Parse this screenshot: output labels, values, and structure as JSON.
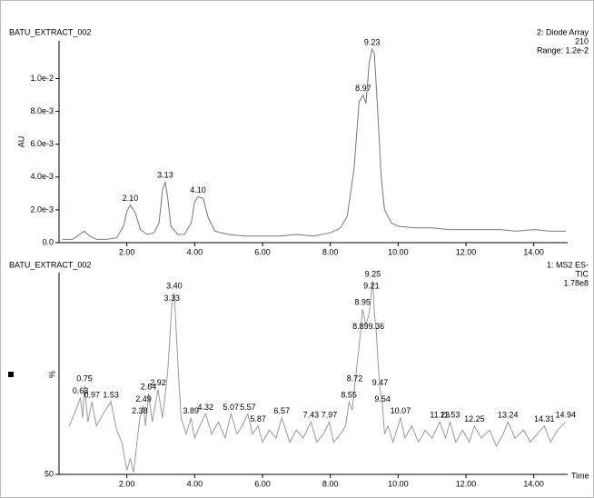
{
  "chart_data": [
    {
      "type": "line",
      "title": "BATU_EXTRACT_002",
      "info": [
        "2: Diode Array",
        "210",
        "Range: 1.2e-2"
      ],
      "ylabel": "AU",
      "xlim": [
        0,
        15
      ],
      "ylim": [
        0,
        0.0123
      ],
      "xticks": [
        {
          "value": 2,
          "label": "2.00"
        },
        {
          "value": 4,
          "label": "4.00"
        },
        {
          "value": 6,
          "label": "6.00"
        },
        {
          "value": 8,
          "label": "8.00"
        },
        {
          "value": 10,
          "label": "10.00"
        },
        {
          "value": 12,
          "label": "12.00"
        },
        {
          "value": 14,
          "label": "14.00"
        }
      ],
      "yticks": [
        {
          "value": 0,
          "label": "0.0"
        },
        {
          "value": 0.002,
          "label": "2.0e-3"
        },
        {
          "value": 0.004,
          "label": "4.0e-3"
        },
        {
          "value": 0.006,
          "label": "6.0e-3"
        },
        {
          "value": 0.008,
          "label": "8.0e-3"
        },
        {
          "value": 0.01,
          "label": "1.0e-2"
        }
      ],
      "series": [
        {
          "color": "#777777",
          "x": [
            0.1,
            0.4,
            0.6,
            0.75,
            0.9,
            1.1,
            1.4,
            1.7,
            1.9,
            2.0,
            2.1,
            2.25,
            2.4,
            2.6,
            2.8,
            2.95,
            3.05,
            3.13,
            3.2,
            3.3,
            3.5,
            3.7,
            3.9,
            4.0,
            4.1,
            4.25,
            4.4,
            4.6,
            5.0,
            5.5,
            6.0,
            6.5,
            7.0,
            7.5,
            8.0,
            8.3,
            8.5,
            8.7,
            8.85,
            8.97,
            9.05,
            9.15,
            9.23,
            9.3,
            9.4,
            9.5,
            9.6,
            9.8,
            10.0,
            10.5,
            11.0,
            11.5,
            12.0,
            12.5,
            13.0,
            13.5,
            14.0,
            14.5,
            14.95
          ],
          "values": [
            0.0002,
            0.0002,
            0.0005,
            0.0007,
            0.0004,
            0.0002,
            0.0002,
            0.0003,
            0.001,
            0.0019,
            0.0023,
            0.0018,
            0.0008,
            0.0005,
            0.0006,
            0.0012,
            0.0032,
            0.0037,
            0.0028,
            0.001,
            0.0005,
            0.0005,
            0.0012,
            0.0025,
            0.0028,
            0.0027,
            0.0015,
            0.0007,
            0.0005,
            0.0004,
            0.0004,
            0.0004,
            0.0005,
            0.0004,
            0.0006,
            0.0009,
            0.0016,
            0.0045,
            0.0086,
            0.009,
            0.0085,
            0.011,
            0.0118,
            0.0115,
            0.008,
            0.004,
            0.002,
            0.0012,
            0.001,
            0.0009,
            0.0009,
            0.0008,
            0.0008,
            0.0008,
            0.0008,
            0.0007,
            0.0008,
            0.0007,
            0.0007
          ]
        }
      ],
      "peaks": [
        {
          "label": "2.10",
          "x": 2.1,
          "y": 0.0023
        },
        {
          "label": "3.13",
          "x": 3.13,
          "y": 0.0037
        },
        {
          "label": "4.10",
          "x": 4.1,
          "y": 0.0028
        },
        {
          "label": "8.97",
          "x": 8.97,
          "y": 0.009
        },
        {
          "label": "9.23",
          "x": 9.23,
          "y": 0.0118
        }
      ]
    },
    {
      "type": "line",
      "title": "BATU_EXTRACT_002",
      "info": [
        "1: MS2 ES-",
        "TIC",
        "1.78e8"
      ],
      "ylabel": "%",
      "xlabel": "Time",
      "xlim": [
        0,
        15
      ],
      "ylim": [
        50,
        100
      ],
      "xticks": [
        {
          "value": 2,
          "label": "2.00"
        },
        {
          "value": 4,
          "label": "4.00"
        },
        {
          "value": 6,
          "label": "6.00"
        },
        {
          "value": 8,
          "label": "8.00"
        },
        {
          "value": 10,
          "label": "10.00"
        },
        {
          "value": 12,
          "label": "12.00"
        },
        {
          "value": 14,
          "label": "14.00"
        }
      ],
      "yticks": [
        50
      ],
      "series": [
        {
          "color": "#999999",
          "x": [
            0.3,
            0.5,
            0.63,
            0.7,
            0.75,
            0.85,
            0.97,
            1.1,
            1.3,
            1.53,
            1.7,
            1.85,
            2.0,
            2.1,
            2.2,
            2.38,
            2.49,
            2.55,
            2.64,
            2.75,
            2.92,
            3.05,
            3.2,
            3.33,
            3.4,
            3.5,
            3.6,
            3.75,
            3.89,
            4.0,
            4.15,
            4.32,
            4.5,
            4.7,
            4.9,
            5.07,
            5.25,
            5.4,
            5.57,
            5.7,
            5.87,
            6.0,
            6.2,
            6.4,
            6.57,
            6.8,
            7.0,
            7.2,
            7.43,
            7.6,
            7.8,
            7.97,
            8.1,
            8.3,
            8.45,
            8.55,
            8.65,
            8.72,
            8.8,
            8.89,
            8.95,
            9.05,
            9.15,
            9.21,
            9.25,
            9.3,
            9.36,
            9.42,
            9.47,
            9.54,
            9.6,
            9.7,
            9.85,
            10.07,
            10.2,
            10.4,
            10.6,
            10.8,
            11.0,
            11.23,
            11.4,
            11.53,
            11.7,
            11.9,
            12.1,
            12.25,
            12.45,
            12.7,
            12.9,
            13.1,
            13.24,
            13.45,
            13.7,
            13.9,
            14.1,
            14.31,
            14.5,
            14.7,
            14.94
          ],
          "values": [
            62,
            66,
            69,
            64,
            72,
            63,
            68,
            62,
            65,
            68,
            61,
            58,
            51,
            54,
            50.5,
            64,
            67,
            62,
            70,
            63,
            71,
            64,
            75,
            92,
            95,
            78,
            64,
            60,
            64,
            59,
            62,
            65,
            60,
            63,
            59,
            65,
            60,
            62,
            65,
            60,
            62,
            58,
            61,
            59,
            64,
            58,
            61,
            59,
            63,
            58,
            60,
            63,
            58,
            60,
            62,
            68,
            66,
            72,
            78,
            85,
            91,
            87,
            90,
            95,
            98,
            90,
            85,
            76,
            71,
            67,
            60,
            62,
            58,
            64,
            59,
            62,
            58,
            61,
            59,
            63,
            59,
            63,
            58,
            61,
            58,
            62,
            59,
            61,
            57,
            60,
            63,
            59,
            61,
            58,
            60,
            62,
            58,
            61,
            63
          ]
        }
      ],
      "peaks": [
        {
          "label": "0.63",
          "x": 0.63,
          "y": 69
        },
        {
          "label": "0.75",
          "x": 0.75,
          "y": 72
        },
        {
          "label": "0.97",
          "x": 0.97,
          "y": 68
        },
        {
          "label": "1.53",
          "x": 1.53,
          "y": 68
        },
        {
          "label": "2.38",
          "x": 2.38,
          "y": 64
        },
        {
          "label": "2.49",
          "x": 2.49,
          "y": 67
        },
        {
          "label": "2.64",
          "x": 2.64,
          "y": 70
        },
        {
          "label": "2.92",
          "x": 2.92,
          "y": 71
        },
        {
          "label": "3.33",
          "x": 3.33,
          "y": 92
        },
        {
          "label": "3.40",
          "x": 3.4,
          "y": 95
        },
        {
          "label": "3.89",
          "x": 3.89,
          "y": 64
        },
        {
          "label": "4.32",
          "x": 4.32,
          "y": 65
        },
        {
          "label": "5.07",
          "x": 5.07,
          "y": 65
        },
        {
          "label": "5.57",
          "x": 5.57,
          "y": 65
        },
        {
          "label": "5.87",
          "x": 5.87,
          "y": 62
        },
        {
          "label": "6.57",
          "x": 6.57,
          "y": 64
        },
        {
          "label": "7.43",
          "x": 7.43,
          "y": 63
        },
        {
          "label": "7.97",
          "x": 7.97,
          "y": 63
        },
        {
          "label": "8.55",
          "x": 8.55,
          "y": 68
        },
        {
          "label": "8.72",
          "x": 8.72,
          "y": 72
        },
        {
          "label": "8.89",
          "x": 8.89,
          "y": 85
        },
        {
          "label": "8.95",
          "x": 8.95,
          "y": 91
        },
        {
          "label": "9.21",
          "x": 9.21,
          "y": 95
        },
        {
          "label": "9.25",
          "x": 9.25,
          "y": 98
        },
        {
          "label": "9.36",
          "x": 9.36,
          "y": 85
        },
        {
          "label": "9.47",
          "x": 9.47,
          "y": 71
        },
        {
          "label": "9.54",
          "x": 9.54,
          "y": 67
        },
        {
          "label": "10.07",
          "x": 10.07,
          "y": 64
        },
        {
          "label": "11.23",
          "x": 11.23,
          "y": 63
        },
        {
          "label": "11.53",
          "x": 11.53,
          "y": 63
        },
        {
          "label": "12.25",
          "x": 12.25,
          "y": 62
        },
        {
          "label": "13.24",
          "x": 13.24,
          "y": 63
        },
        {
          "label": "14.31",
          "x": 14.31,
          "y": 62
        },
        {
          "label": "14.94",
          "x": 14.94,
          "y": 63
        }
      ]
    }
  ]
}
